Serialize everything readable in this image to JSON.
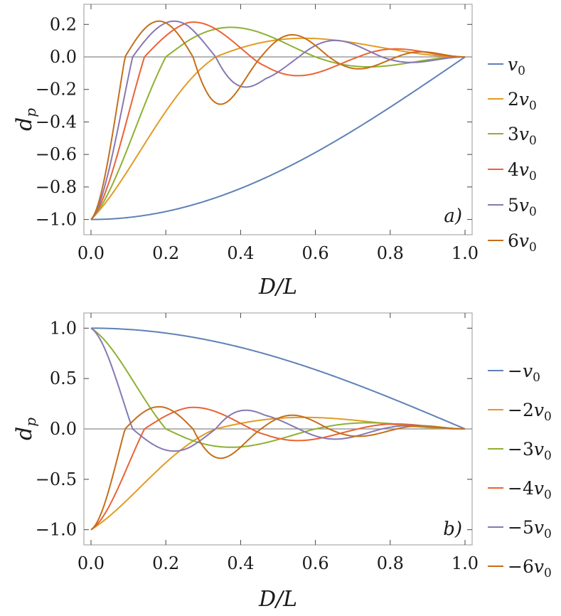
{
  "colors": [
    "#5E81B5",
    "#E19C24",
    "#8FB032",
    "#EB6235",
    "#8778B3",
    "#C56E1A"
  ],
  "chart_data": [
    {
      "type": "line",
      "panel": "a",
      "panel_label": "a)",
      "xlabel": "D/L",
      "ylabel": "d_p",
      "xlim": [
        0,
        1
      ],
      "ylim": [
        -1.05,
        0.28
      ],
      "xticks": [
        "0.0",
        "0.2",
        "0.4",
        "0.6",
        "0.8",
        "1.0"
      ],
      "yticks": [
        "−1.0",
        "−0.8",
        "−0.6",
        "−0.4",
        "−0.2",
        "0.0",
        "0.2"
      ],
      "legend_position": "right",
      "series": [
        {
          "name": "v0",
          "legend": [
            "",
            "v",
            "0"
          ]
        },
        {
          "name": "2v0",
          "legend": [
            "2",
            "v",
            "0"
          ]
        },
        {
          "name": "3v0",
          "legend": [
            "3",
            "v",
            "0"
          ]
        },
        {
          "name": "4v0",
          "legend": [
            "4",
            "v",
            "0"
          ]
        },
        {
          "name": "5v0",
          "legend": [
            "5",
            "v",
            "0"
          ]
        },
        {
          "name": "6v0",
          "legend": [
            "6",
            "v",
            "0"
          ]
        }
      ]
    },
    {
      "type": "line",
      "panel": "b",
      "panel_label": "b)",
      "xlabel": "D/L",
      "ylabel": "d_p",
      "xlim": [
        0,
        1
      ],
      "ylim": [
        -1.08,
        1.08
      ],
      "xticks": [
        "0.0",
        "0.2",
        "0.4",
        "0.6",
        "0.8",
        "1.0"
      ],
      "yticks": [
        "−1.0",
        "−0.5",
        "0.0",
        "0.5",
        "1.0"
      ],
      "legend_position": "right",
      "series": [
        {
          "name": "−v0",
          "legend": [
            "−",
            "v",
            "0"
          ]
        },
        {
          "name": "−2v0",
          "legend": [
            "−2",
            "v",
            "0"
          ]
        },
        {
          "name": "−3v0",
          "legend": [
            "−3",
            "v",
            "0"
          ]
        },
        {
          "name": "−4v0",
          "legend": [
            "−4",
            "v",
            "0"
          ]
        },
        {
          "name": "−5v0",
          "legend": [
            "−5",
            "v",
            "0"
          ]
        },
        {
          "name": "−6v0",
          "legend": [
            "−6",
            "v",
            "0"
          ]
        }
      ]
    }
  ]
}
